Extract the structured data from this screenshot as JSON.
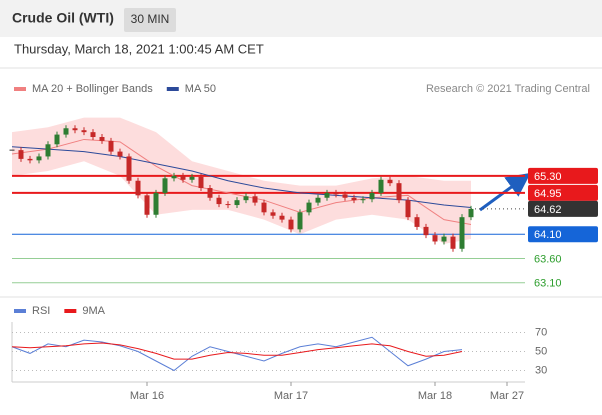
{
  "header": {
    "title": "Crude Oil (WTI)",
    "interval": "30 MIN"
  },
  "timestamp": "Thursday, March 18, 2021 1:00:45 AM CET",
  "chart_data": [
    {
      "type": "candlestick",
      "credit": "Research © 2021 Trading Central",
      "ylim": [
        62.9,
        66.8
      ],
      "values": [
        65.83,
        65.65,
        65.62,
        65.7,
        65.95,
        66.15,
        66.28,
        66.24,
        66.2,
        66.1,
        66.02,
        65.8,
        65.7,
        65.2,
        64.9,
        64.5,
        64.95,
        65.25,
        65.3,
        65.22,
        65.28,
        65.05,
        64.85,
        64.72,
        64.7,
        64.8,
        64.88,
        64.75,
        64.55,
        64.48,
        64.4,
        64.2,
        64.55,
        64.75,
        64.85,
        64.95,
        64.92,
        64.85,
        64.8,
        64.82,
        64.95,
        65.22,
        65.15,
        64.8,
        64.45,
        64.25,
        64.08,
        63.95,
        64.05,
        63.8,
        64.45,
        64.62
      ],
      "up_color": "#2e7d32",
      "down_color": "#c62828",
      "series": [
        {
          "name": "MA 20 + Bollinger Bands",
          "color": "#f08080",
          "band_color": "#fcd5d5",
          "x": [
            0,
            4,
            8,
            12,
            16,
            20,
            24,
            28,
            32,
            36,
            40,
            44,
            48,
            51
          ],
          "values": [
            65.75,
            65.85,
            66.05,
            66.0,
            65.5,
            65.1,
            64.95,
            64.8,
            64.55,
            64.75,
            64.85,
            64.9,
            64.4,
            64.3
          ],
          "upper": [
            66.2,
            66.3,
            66.5,
            66.5,
            66.2,
            65.6,
            65.4,
            65.2,
            65.1,
            65.1,
            65.25,
            65.3,
            65.2,
            65.2
          ],
          "lower": [
            65.3,
            65.4,
            65.6,
            65.3,
            64.5,
            64.6,
            64.6,
            64.4,
            64.1,
            64.4,
            64.5,
            64.4,
            63.9,
            64.0
          ]
        },
        {
          "name": "MA 50",
          "color": "#2c4a9a",
          "x": [
            0,
            4,
            8,
            12,
            16,
            20,
            24,
            28,
            32,
            36,
            40,
            44,
            48,
            51
          ],
          "values": [
            65.9,
            65.85,
            65.8,
            65.7,
            65.55,
            65.4,
            65.2,
            65.05,
            64.95,
            64.9,
            64.85,
            64.8,
            64.7,
            64.65
          ]
        }
      ],
      "levels": [
        {
          "value": 65.3,
          "label": "65.30",
          "color": "#e8191c",
          "style": "box"
        },
        {
          "value": 64.95,
          "label": "64.95",
          "color": "#e8191c",
          "style": "box"
        },
        {
          "value": 64.62,
          "label": "64.62",
          "color": "#333333",
          "style": "current"
        },
        {
          "value": 64.1,
          "label": "64.10",
          "color": "#1565d8",
          "style": "box"
        },
        {
          "value": 63.6,
          "label": "63.60",
          "color": "#2e9e2e",
          "style": "text"
        },
        {
          "value": 63.1,
          "label": "63.10",
          "color": "#2e9e2e",
          "style": "text"
        }
      ]
    },
    {
      "type": "line",
      "xlim": [
        0,
        57
      ],
      "xticks": [
        {
          "value": 15,
          "label": "Mar 16"
        },
        {
          "value": 31,
          "label": "Mar 17"
        },
        {
          "value": 47,
          "label": "Mar 18"
        },
        {
          "value": 55,
          "label": "Mar 27"
        }
      ],
      "ylim": [
        20,
        80
      ],
      "yticks": [
        70,
        50,
        30
      ],
      "series": [
        {
          "name": "RSI",
          "color": "#5b7fd6",
          "x": [
            0,
            2,
            4,
            6,
            8,
            10,
            12,
            14,
            16,
            18,
            20,
            22,
            24,
            26,
            28,
            30,
            32,
            34,
            36,
            38,
            40,
            42,
            44,
            46,
            48,
            50
          ],
          "values": [
            55,
            48,
            58,
            55,
            62,
            60,
            56,
            50,
            40,
            30,
            45,
            55,
            50,
            45,
            40,
            48,
            55,
            58,
            55,
            60,
            65,
            50,
            35,
            42,
            50,
            52
          ]
        },
        {
          "name": "9MA",
          "color": "#e8191c",
          "x": [
            0,
            2,
            4,
            6,
            8,
            10,
            12,
            14,
            16,
            18,
            20,
            22,
            24,
            26,
            28,
            30,
            32,
            34,
            36,
            38,
            40,
            42,
            44,
            46,
            48,
            50
          ],
          "values": [
            55,
            54,
            55,
            56,
            58,
            59,
            57,
            53,
            48,
            42,
            42,
            46,
            49,
            48,
            46,
            46,
            49,
            52,
            54,
            56,
            58,
            56,
            50,
            45,
            46,
            50
          ]
        }
      ]
    }
  ]
}
